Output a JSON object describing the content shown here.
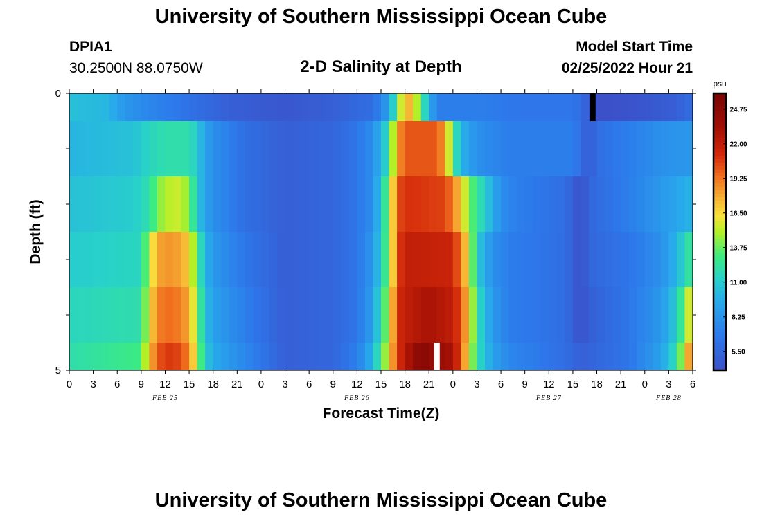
{
  "page": {
    "title": "University of Southern Mississippi Ocean Cube",
    "footer_title": "University of Southern Mississippi Ocean Cube",
    "station_id": "DPIA1",
    "station_coords": "30.2500N  88.0750W",
    "chart_title": "2-D Salinity at Depth",
    "model_start_label": "Model Start Time",
    "model_start_value": "02/25/2022 Hour 21"
  },
  "chart_data": {
    "type": "heatmap",
    "title": "2-D Salinity at Depth",
    "xlabel": "Forecast Time(Z)",
    "ylabel": "Depth (ft)",
    "y_ticks": [
      "0",
      "5"
    ],
    "ylim": [
      0,
      5
    ],
    "x_ticks": [
      "0",
      "3",
      "6",
      "9",
      "12",
      "15",
      "18",
      "21",
      "0",
      "3",
      "6",
      "9",
      "12",
      "15",
      "18",
      "21",
      "0",
      "3",
      "6",
      "9",
      "12",
      "15",
      "18",
      "21",
      "0",
      "3",
      "6"
    ],
    "date_labels": [
      {
        "label": "FEB 25",
        "hour": 12
      },
      {
        "label": "FEB 26",
        "hour": 36
      },
      {
        "label": "FEB 27",
        "hour": 60
      },
      {
        "label": "FEB 28",
        "hour": 75
      }
    ],
    "time_range_hours": [
      0,
      78
    ],
    "colorbar": {
      "unit": "psu",
      "ticks": [
        "24.75",
        "22.00",
        "19.25",
        "16.50",
        "13.75",
        "11.00",
        "8.25",
        "5.50"
      ],
      "range": [
        4.0,
        26.0
      ]
    },
    "layers": [
      {
        "depth_ft": "0.0-0.5",
        "keyframes": [
          [
            0,
            10.5
          ],
          [
            5,
            10
          ],
          [
            6,
            9
          ],
          [
            8,
            8
          ],
          [
            12,
            7
          ],
          [
            16,
            6
          ],
          [
            20,
            5
          ],
          [
            27,
            4.5
          ],
          [
            33,
            5
          ],
          [
            38,
            6
          ],
          [
            40,
            9
          ],
          [
            41,
            13
          ],
          [
            42,
            18
          ],
          [
            43,
            17
          ],
          [
            44,
            13
          ],
          [
            45,
            10
          ],
          [
            46,
            7
          ],
          [
            52,
            7
          ],
          [
            56,
            6.5
          ],
          [
            63,
            6.5
          ],
          [
            64,
            6
          ],
          [
            65,
            4.5
          ],
          [
            66,
            4
          ],
          [
            70,
            4.2
          ],
          [
            76,
            5
          ],
          [
            78,
            6
          ]
        ]
      },
      {
        "depth_ft": "0.5-1.5",
        "keyframes": [
          [
            0,
            10
          ],
          [
            8,
            10.5
          ],
          [
            9,
            11
          ],
          [
            10,
            11.5
          ],
          [
            12,
            12
          ],
          [
            15,
            12
          ],
          [
            16,
            11
          ],
          [
            17,
            9
          ],
          [
            18,
            8
          ],
          [
            22,
            6
          ],
          [
            27,
            5
          ],
          [
            33,
            5.5
          ],
          [
            36,
            6.5
          ],
          [
            38,
            8
          ],
          [
            40,
            12
          ],
          [
            41,
            18
          ],
          [
            42,
            20
          ],
          [
            46,
            20
          ],
          [
            47,
            18
          ],
          [
            48,
            13
          ],
          [
            49,
            10
          ],
          [
            51,
            8
          ],
          [
            55,
            7
          ],
          [
            63,
            7
          ],
          [
            64,
            6
          ],
          [
            65,
            4.5
          ],
          [
            66,
            6
          ],
          [
            70,
            7
          ],
          [
            74,
            8
          ],
          [
            78,
            8.5
          ]
        ]
      },
      {
        "depth_ft": "1.5-2.5",
        "keyframes": [
          [
            0,
            10.5
          ],
          [
            8,
            11
          ],
          [
            10,
            12
          ],
          [
            11,
            14
          ],
          [
            12,
            15
          ],
          [
            14,
            15.5
          ],
          [
            15,
            14
          ],
          [
            16,
            11
          ],
          [
            17,
            9
          ],
          [
            18,
            8
          ],
          [
            22,
            6
          ],
          [
            27,
            5
          ],
          [
            33,
            5.5
          ],
          [
            36,
            6.5
          ],
          [
            38,
            8
          ],
          [
            40,
            14
          ],
          [
            41,
            20
          ],
          [
            42,
            21
          ],
          [
            47,
            20.5
          ],
          [
            48,
            19
          ],
          [
            49,
            17
          ],
          [
            50,
            14
          ],
          [
            52,
            11
          ],
          [
            54,
            8
          ],
          [
            56,
            7
          ],
          [
            62,
            6
          ],
          [
            63,
            5
          ],
          [
            64,
            4
          ],
          [
            65,
            5.5
          ],
          [
            70,
            7
          ],
          [
            74,
            8.5
          ],
          [
            78,
            10
          ]
        ]
      },
      {
        "depth_ft": "2.5-3.5",
        "keyframes": [
          [
            0,
            11
          ],
          [
            9,
            11.5
          ],
          [
            10,
            15
          ],
          [
            11,
            18
          ],
          [
            13,
            18.5
          ],
          [
            15,
            17
          ],
          [
            16,
            13
          ],
          [
            17,
            10
          ],
          [
            18,
            8.5
          ],
          [
            22,
            6.5
          ],
          [
            27,
            5
          ],
          [
            33,
            5.5
          ],
          [
            36,
            6.5
          ],
          [
            38,
            8.5
          ],
          [
            40,
            14
          ],
          [
            41,
            20
          ],
          [
            42,
            22
          ],
          [
            48,
            21.5
          ],
          [
            49,
            19
          ],
          [
            50,
            16
          ],
          [
            51,
            11
          ],
          [
            53,
            8
          ],
          [
            55,
            7
          ],
          [
            62,
            6
          ],
          [
            63,
            5
          ],
          [
            64,
            4
          ],
          [
            65,
            5.5
          ],
          [
            70,
            6.5
          ],
          [
            74,
            8
          ],
          [
            76,
            10
          ],
          [
            78,
            13
          ]
        ]
      },
      {
        "depth_ft": "3.5-4.5",
        "keyframes": [
          [
            0,
            11.5
          ],
          [
            9,
            12
          ],
          [
            10,
            16
          ],
          [
            11,
            19
          ],
          [
            13,
            19.5
          ],
          [
            15,
            18
          ],
          [
            16,
            14
          ],
          [
            17,
            10.5
          ],
          [
            18,
            9
          ],
          [
            22,
            7
          ],
          [
            27,
            5
          ],
          [
            33,
            5.5
          ],
          [
            36,
            6.5
          ],
          [
            38,
            9
          ],
          [
            40,
            15
          ],
          [
            41,
            21
          ],
          [
            42,
            22
          ],
          [
            45,
            23
          ],
          [
            48,
            22
          ],
          [
            49,
            20
          ],
          [
            50,
            17
          ],
          [
            51,
            12
          ],
          [
            53,
            8.5
          ],
          [
            55,
            7
          ],
          [
            62,
            6
          ],
          [
            63,
            5
          ],
          [
            64,
            4
          ],
          [
            65,
            5
          ],
          [
            70,
            6.5
          ],
          [
            74,
            8.5
          ],
          [
            76,
            11
          ],
          [
            77,
            14
          ],
          [
            78,
            17
          ]
        ]
      },
      {
        "depth_ft": "4.5-5.0",
        "keyframes": [
          [
            0,
            12
          ],
          [
            9,
            13
          ],
          [
            10,
            17
          ],
          [
            11,
            20
          ],
          [
            13,
            21
          ],
          [
            15,
            19
          ],
          [
            16,
            15
          ],
          [
            17,
            11
          ],
          [
            18,
            9.5
          ],
          [
            22,
            7.5
          ],
          [
            27,
            5
          ],
          [
            33,
            5.5
          ],
          [
            36,
            7
          ],
          [
            38,
            10
          ],
          [
            40,
            16
          ],
          [
            41,
            21
          ],
          [
            42,
            22
          ],
          [
            43,
            24
          ],
          [
            44,
            25
          ],
          [
            48,
            23
          ],
          [
            49,
            20
          ],
          [
            50,
            16
          ],
          [
            51,
            12
          ],
          [
            53,
            9
          ],
          [
            55,
            7.5
          ],
          [
            62,
            6
          ],
          [
            64,
            5
          ],
          [
            66,
            5.5
          ],
          [
            70,
            6.5
          ],
          [
            74,
            9
          ],
          [
            76,
            12
          ],
          [
            77,
            16
          ],
          [
            78,
            20
          ]
        ]
      }
    ],
    "gaps": [
      {
        "layer": 0,
        "hour": 65.5,
        "color": "#000000"
      },
      {
        "layer": 5,
        "hour": 46,
        "color": "#ffffff"
      }
    ]
  }
}
